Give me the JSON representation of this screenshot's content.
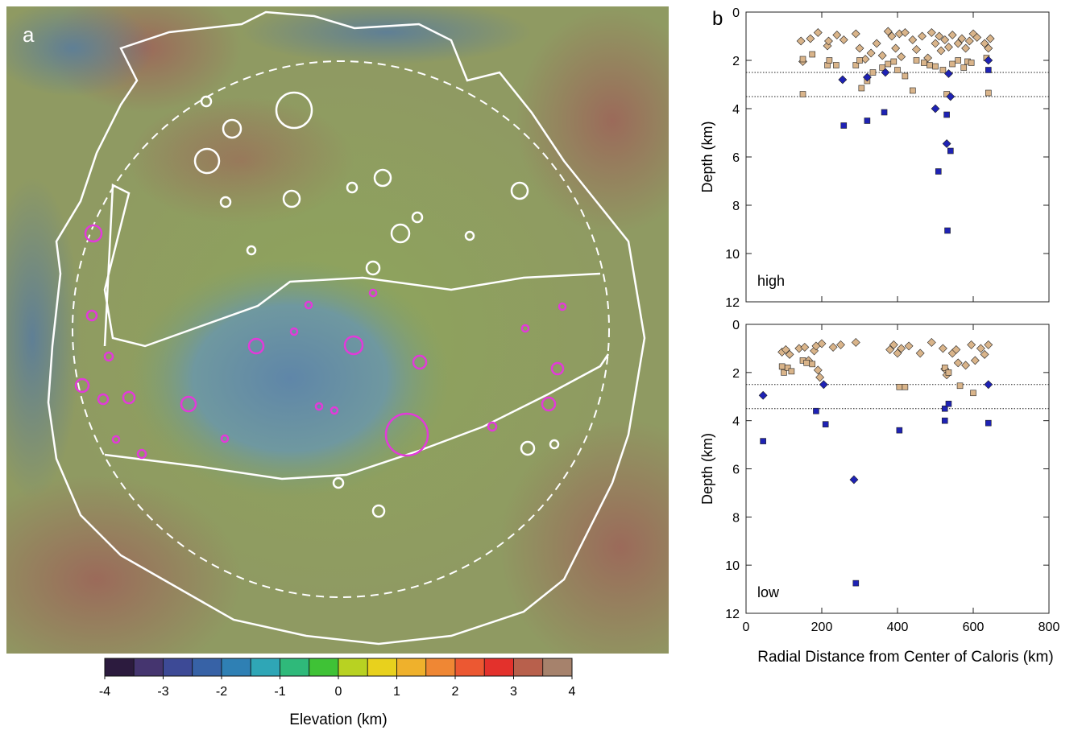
{
  "chart_data": [
    {
      "type": "map",
      "panel_label": "a",
      "colorbar": {
        "label": "Elevation (km)",
        "lim": [
          -4,
          4
        ],
        "ticks": [
          -4,
          -3,
          -2,
          -1,
          0,
          1,
          2,
          3,
          4
        ],
        "colors": [
          "#2c1b3e",
          "#45356f",
          "#3d4a96",
          "#3762a6",
          "#2f80b4",
          "#2fa6b6",
          "#2fb97a",
          "#3fc236",
          "#b8d222",
          "#e8d11d",
          "#efb12c",
          "#ef8734",
          "#ec5832",
          "#e3312c",
          "#b8604c",
          "#a6826c"
        ]
      }
    },
    {
      "type": "scatter",
      "panel_label": "b",
      "annotation": "high",
      "ylabel": "Depth (km)",
      "xlim": [
        0,
        800
      ],
      "xticks": [
        0,
        200,
        400,
        600,
        800
      ],
      "xtick_labels": false,
      "ylim": [
        0,
        12
      ],
      "yticks": [
        0,
        2,
        4,
        6,
        8,
        10,
        12
      ],
      "y_inverted": true,
      "hlines": [
        2.5,
        3.5
      ],
      "series": [
        {
          "marker": "diamond",
          "color": "#d9b48a",
          "x": [
            145,
            150,
            170,
            190,
            215,
            218,
            240,
            258,
            290,
            300,
            315,
            330,
            345,
            360,
            375,
            385,
            395,
            405,
            410,
            420,
            440,
            450,
            465,
            480,
            490,
            500,
            510,
            515,
            525,
            535,
            545,
            560,
            570,
            580,
            590,
            600,
            610,
            630,
            640,
            645
          ],
          "values": [
            1.2,
            2.05,
            1.1,
            0.85,
            1.4,
            1.2,
            0.95,
            1.15,
            0.9,
            1.5,
            1.95,
            1.7,
            1.3,
            1.8,
            0.8,
            1.0,
            1.5,
            0.9,
            1.85,
            0.85,
            1.15,
            1.55,
            1.0,
            1.9,
            0.85,
            1.3,
            1.0,
            1.6,
            1.15,
            1.45,
            0.95,
            1.3,
            1.1,
            1.5,
            1.2,
            0.9,
            1.05,
            1.3,
            1.5,
            1.1
          ]
        },
        {
          "marker": "square",
          "color": "#d9b48a",
          "x": [
            150,
            150,
            175,
            215,
            220,
            238,
            290,
            300,
            305,
            320,
            335,
            360,
            375,
            390,
            400,
            420,
            440,
            450,
            470,
            485,
            500,
            520,
            530,
            545,
            560,
            575,
            585,
            595,
            635,
            640
          ],
          "values": [
            1.95,
            3.4,
            1.75,
            2.2,
            2.0,
            2.2,
            2.2,
            2.0,
            3.15,
            2.85,
            2.5,
            2.3,
            2.15,
            2.05,
            2.4,
            2.65,
            3.25,
            2.0,
            2.1,
            2.2,
            2.25,
            2.4,
            3.4,
            2.15,
            2.0,
            2.3,
            2.05,
            2.1,
            1.9,
            3.35
          ]
        },
        {
          "marker": "diamond",
          "color": "#1e22b4",
          "x": [
            255,
            320,
            368,
            500,
            530,
            535,
            540,
            640
          ],
          "values": [
            2.8,
            2.7,
            2.5,
            4.0,
            5.45,
            2.55,
            3.5,
            2.0
          ]
        },
        {
          "marker": "square",
          "color": "#1e22b4",
          "x": [
            258,
            320,
            365,
            508,
            530,
            540,
            532,
            640
          ],
          "values": [
            4.7,
            4.5,
            4.15,
            6.6,
            4.25,
            5.75,
            9.05,
            2.4
          ]
        }
      ]
    },
    {
      "type": "scatter",
      "annotation": "low",
      "ylabel": "Depth (km)",
      "xlabel": "Radial Distance from Center of Caloris (km)",
      "xlim": [
        0,
        800
      ],
      "xticks": [
        0,
        200,
        400,
        600,
        800
      ],
      "xtick_labels": true,
      "ylim": [
        0,
        12
      ],
      "yticks": [
        0,
        2,
        4,
        6,
        8,
        10,
        12
      ],
      "y_inverted": true,
      "hlines": [
        2.5,
        3.5
      ],
      "series": [
        {
          "marker": "diamond",
          "color": "#d9b48a",
          "x": [
            95,
            105,
            115,
            140,
            155,
            165,
            180,
            185,
            190,
            195,
            200,
            230,
            250,
            290,
            380,
            390,
            400,
            410,
            430,
            460,
            490,
            520,
            525,
            530,
            545,
            555,
            560,
            580,
            595,
            605,
            620,
            630,
            640
          ],
          "values": [
            1.15,
            1.05,
            1.25,
            1.0,
            0.95,
            1.5,
            1.1,
            0.9,
            1.9,
            2.2,
            0.8,
            0.95,
            0.85,
            0.75,
            1.05,
            0.85,
            1.2,
            1.0,
            0.9,
            1.2,
            0.75,
            1.0,
            1.85,
            2.1,
            1.2,
            1.05,
            1.6,
            1.7,
            0.85,
            1.5,
            1.0,
            1.25,
            0.85
          ]
        },
        {
          "marker": "square",
          "color": "#d9b48a",
          "x": [
            95,
            100,
            110,
            120,
            150,
            160,
            175,
            405,
            420,
            525,
            535,
            565,
            600
          ],
          "values": [
            1.75,
            2.0,
            1.8,
            1.95,
            1.5,
            1.6,
            1.65,
            2.6,
            2.6,
            1.8,
            2.0,
            2.55,
            2.85
          ]
        },
        {
          "marker": "diamond",
          "color": "#1e22b4",
          "x": [
            45,
            205,
            285,
            640
          ],
          "values": [
            2.95,
            2.5,
            6.45,
            2.5
          ]
        },
        {
          "marker": "square",
          "color": "#1e22b4",
          "x": [
            45,
            185,
            210,
            405,
            525,
            525,
            535,
            640,
            290
          ],
          "values": [
            4.85,
            3.6,
            4.15,
            4.4,
            3.5,
            4.0,
            3.3,
            4.1,
            10.75
          ]
        }
      ]
    }
  ]
}
